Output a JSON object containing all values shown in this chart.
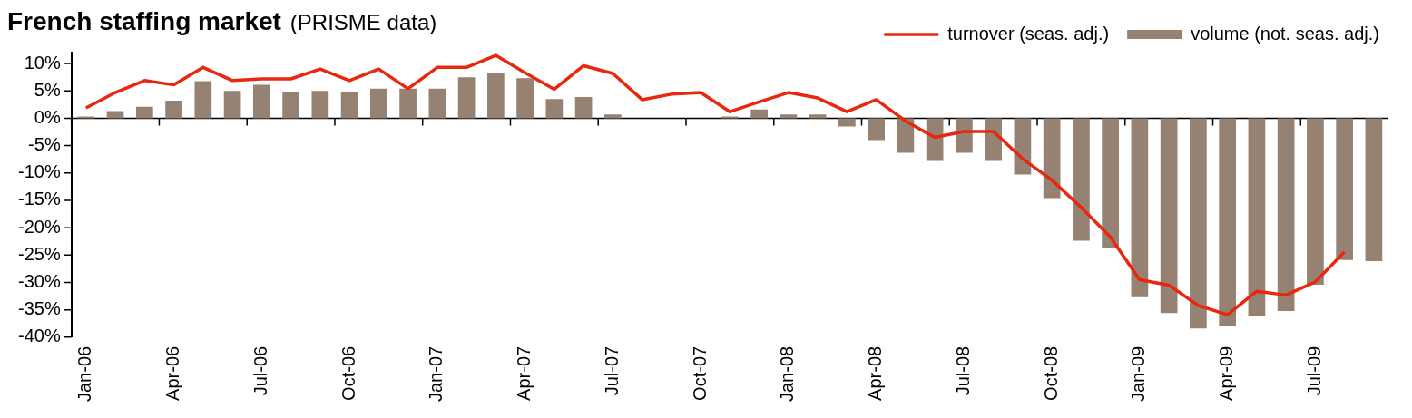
{
  "chart_data": {
    "type": "bar",
    "title": "French staffing market",
    "subtitle": "(PRISME data)",
    "categories": [
      "Jan-06",
      null,
      null,
      "Apr-06",
      null,
      null,
      "Jul-06",
      null,
      null,
      "Oct-06",
      null,
      null,
      "Jan-07",
      null,
      null,
      "Apr-07",
      null,
      null,
      "Jul-07",
      null,
      null,
      "Oct-07",
      null,
      null,
      "Jan-08",
      null,
      null,
      "Apr-08",
      null,
      null,
      "Jul-08",
      null,
      null,
      "Oct-08",
      null,
      null,
      "Jan-09",
      null,
      null,
      "Apr-09",
      null,
      null,
      "Jul-09",
      null,
      null
    ],
    "series": [
      {
        "name": "turnover (seas. adj.)",
        "type": "line",
        "color": "#e8280e",
        "values": [
          1.9,
          4.7,
          6.9,
          6.1,
          9.3,
          6.9,
          7.2,
          7.2,
          9.0,
          6.9,
          9.0,
          5.4,
          9.3,
          9.3,
          11.5,
          8.3,
          5.3,
          9.6,
          8.2,
          3.4,
          4.4,
          4.7,
          1.2,
          3.0,
          4.7,
          3.7,
          1.2,
          3.4,
          -0.5,
          -3.5,
          -2.4,
          -2.4,
          -7.4,
          -11.3,
          -16.3,
          -21.7,
          -29.5,
          -30.5,
          -34.2,
          -35.9,
          -31.6,
          -32.3,
          -29.9,
          -24.4,
          null
        ]
      },
      {
        "name": "volume (not. seas. adj.)",
        "type": "bar",
        "color": "#958272",
        "values": [
          0.3,
          1.3,
          2.1,
          3.2,
          6.8,
          5.0,
          6.1,
          4.7,
          5.0,
          4.7,
          5.4,
          5.4,
          5.4,
          7.5,
          8.2,
          7.3,
          3.5,
          3.9,
          0.7,
          null,
          null,
          null,
          0.3,
          1.6,
          0.7,
          0.7,
          -1.5,
          -4.0,
          -6.3,
          -7.8,
          -6.3,
          -7.8,
          -10.3,
          -14.6,
          -22.4,
          -23.8,
          -32.7,
          -35.6,
          -38.4,
          -38.0,
          -36.1,
          -35.2,
          -30.4,
          -25.9,
          -26.1
        ]
      }
    ],
    "ylim": [
      -40,
      12
    ],
    "yticks": [
      {
        "value": -40,
        "label": "-40%"
      },
      {
        "value": -35,
        "label": "-35%"
      },
      {
        "value": -30,
        "label": "-30%"
      },
      {
        "value": -25,
        "label": "-25%"
      },
      {
        "value": -20,
        "label": "-20%"
      },
      {
        "value": -15,
        "label": "-15%"
      },
      {
        "value": -10,
        "label": "-10%"
      },
      {
        "value": -5,
        "label": "-5%"
      },
      {
        "value": 0,
        "label": "0%"
      },
      {
        "value": 5,
        "label": "5%"
      },
      {
        "value": 10,
        "label": "10%"
      }
    ],
    "legend": "top right"
  }
}
